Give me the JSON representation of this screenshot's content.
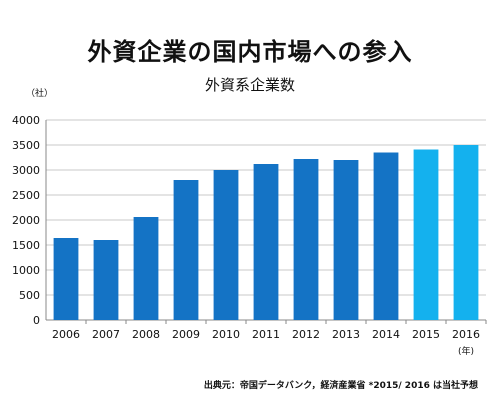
{
  "title": "外資企業の国内市場への参入",
  "subtitle": "外資系企業数",
  "unit_label": "（社）",
  "x_unit_label": "(年)",
  "source_note": "出典元：帝国データバンク，経済産業省 *2015/ 2016 は当社予想",
  "colors": {
    "actual": "#1473c5",
    "forecast": "#14b1ee",
    "grid": "#c8c8c8",
    "axis": "#888888"
  },
  "chart_data": {
    "type": "bar",
    "title": "外資系企業数",
    "categories": [
      "2006",
      "2007",
      "2008",
      "2009",
      "2010",
      "2011",
      "2012",
      "2013",
      "2014",
      "2015",
      "2016"
    ],
    "values": [
      1640,
      1600,
      2060,
      2800,
      3000,
      3120,
      3220,
      3200,
      3350,
      3410,
      3500
    ],
    "forecast_categories": [
      "2015",
      "2016"
    ],
    "ylabel": "（社）",
    "xlabel": "(年)",
    "ylim": [
      0,
      4000
    ],
    "yticks": [
      0,
      500,
      1000,
      1500,
      2000,
      2500,
      3000,
      3500,
      4000
    ],
    "grid": true,
    "legend": "none"
  }
}
